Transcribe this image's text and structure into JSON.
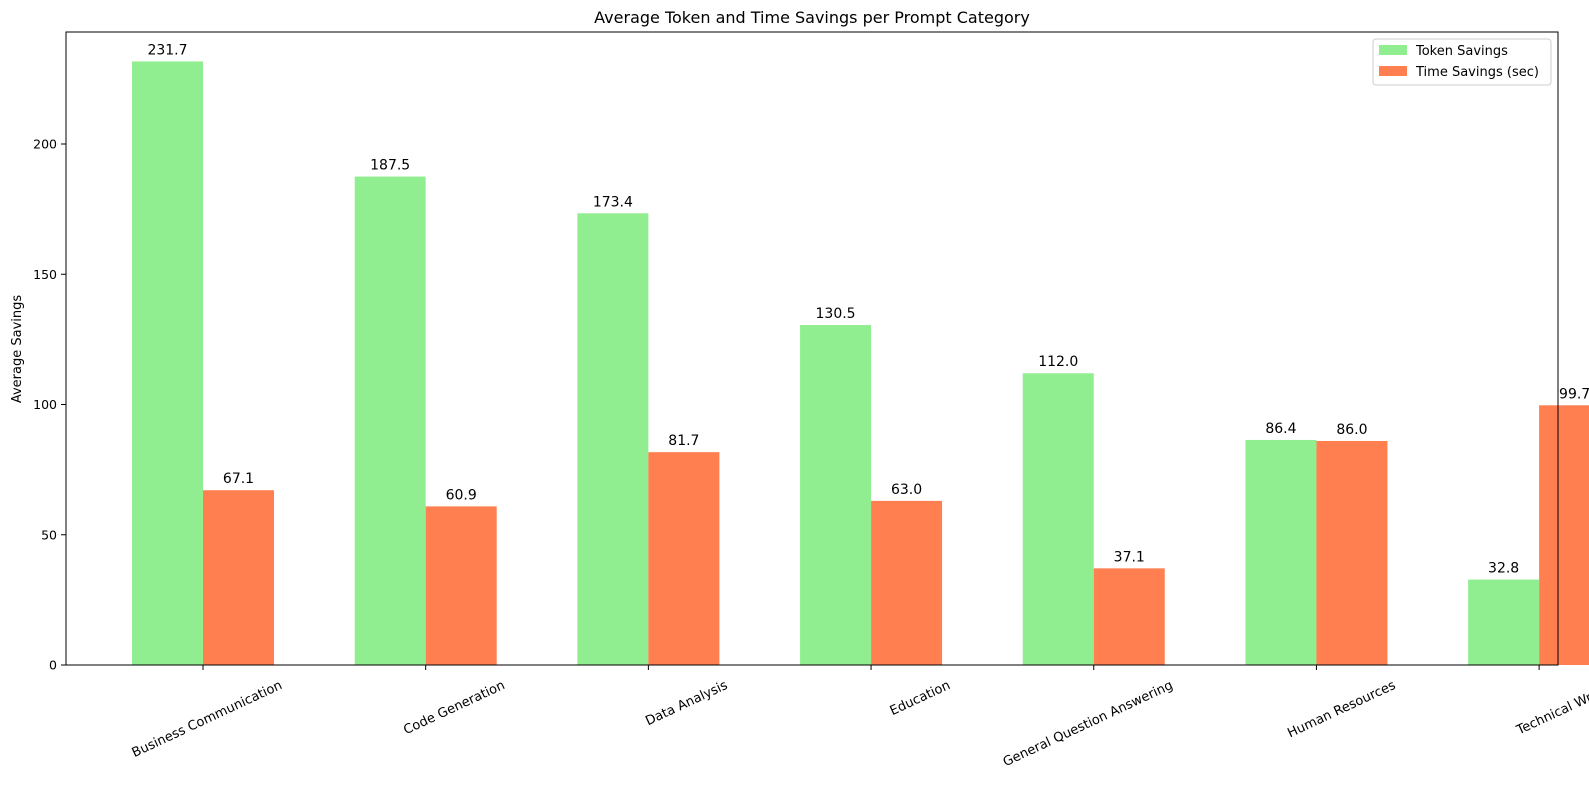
{
  "chart_data": {
    "type": "bar",
    "title": "Average Token and Time Savings per Prompt Category",
    "xlabel": "",
    "ylabel": "Average Savings",
    "ylim": [
      0,
      243
    ],
    "yticks": [
      0,
      50,
      100,
      150,
      200
    ],
    "grid": false,
    "legend_placement": "top-right",
    "categories": [
      "Business Communication",
      "Code Generation",
      "Data Analysis",
      "Education",
      "General Question Answering",
      "Human Resources",
      "Technical Writing"
    ],
    "series": [
      {
        "name": "Token Savings",
        "color": "#90ee90",
        "values": [
          231.7,
          187.5,
          173.4,
          130.5,
          112.0,
          86.4,
          32.8
        ]
      },
      {
        "name": "Time Savings (sec)",
        "color": "#ff7f50",
        "values": [
          67.1,
          60.9,
          81.7,
          63.0,
          37.1,
          86.0,
          99.7
        ]
      }
    ]
  }
}
